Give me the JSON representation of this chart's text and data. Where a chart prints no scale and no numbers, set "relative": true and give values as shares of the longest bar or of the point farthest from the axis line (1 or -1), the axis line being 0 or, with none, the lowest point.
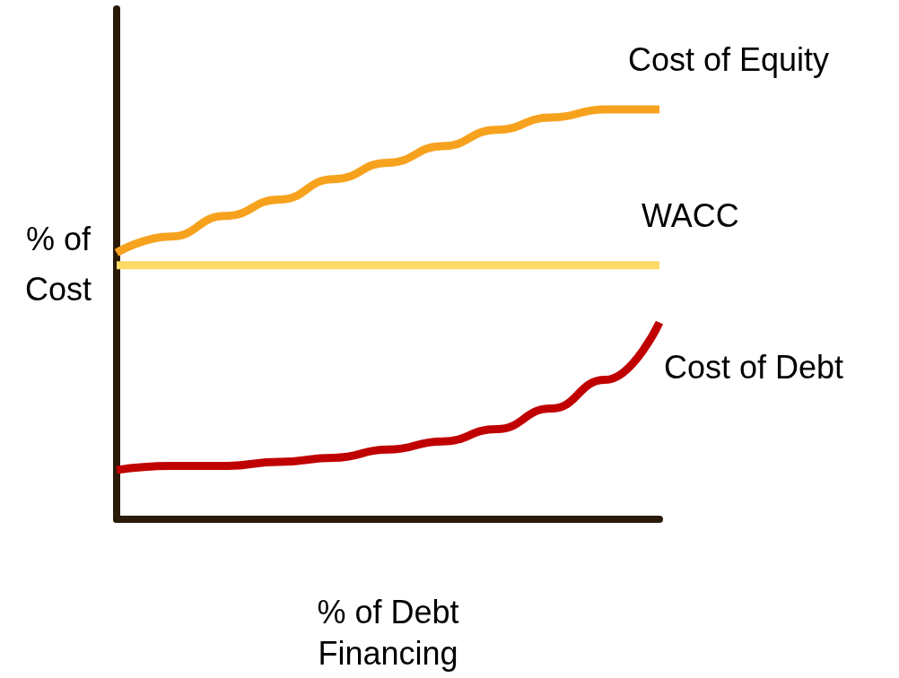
{
  "chart_data": {
    "type": "line",
    "relative": true,
    "xlabel": "% of Debt\nFinancing",
    "ylabel": "% of\nCost",
    "categories": [
      null,
      null,
      null,
      null,
      null,
      null,
      null,
      null,
      null,
      null,
      null
    ],
    "grid": false,
    "legend": false,
    "marker": "none",
    "line_style": "solid",
    "series": [
      {
        "name": "Cost of Equity",
        "color": "#f7a21e",
        "values": [
          0.65,
          0.69,
          0.74,
          0.78,
          0.83,
          0.87,
          0.91,
          0.95,
          0.98,
          1.0,
          1.0
        ]
      },
      {
        "name": "WACC",
        "color": "#ffd966",
        "values": [
          0.62,
          0.62,
          0.62,
          0.62,
          0.62,
          0.62,
          0.62,
          0.62,
          0.62,
          0.62,
          0.62
        ]
      },
      {
        "name": "Cost of Debt",
        "color": "#c00000",
        "values": [
          0.12,
          0.13,
          0.13,
          0.14,
          0.15,
          0.17,
          0.19,
          0.22,
          0.27,
          0.34,
          0.48
        ]
      }
    ]
  }
}
